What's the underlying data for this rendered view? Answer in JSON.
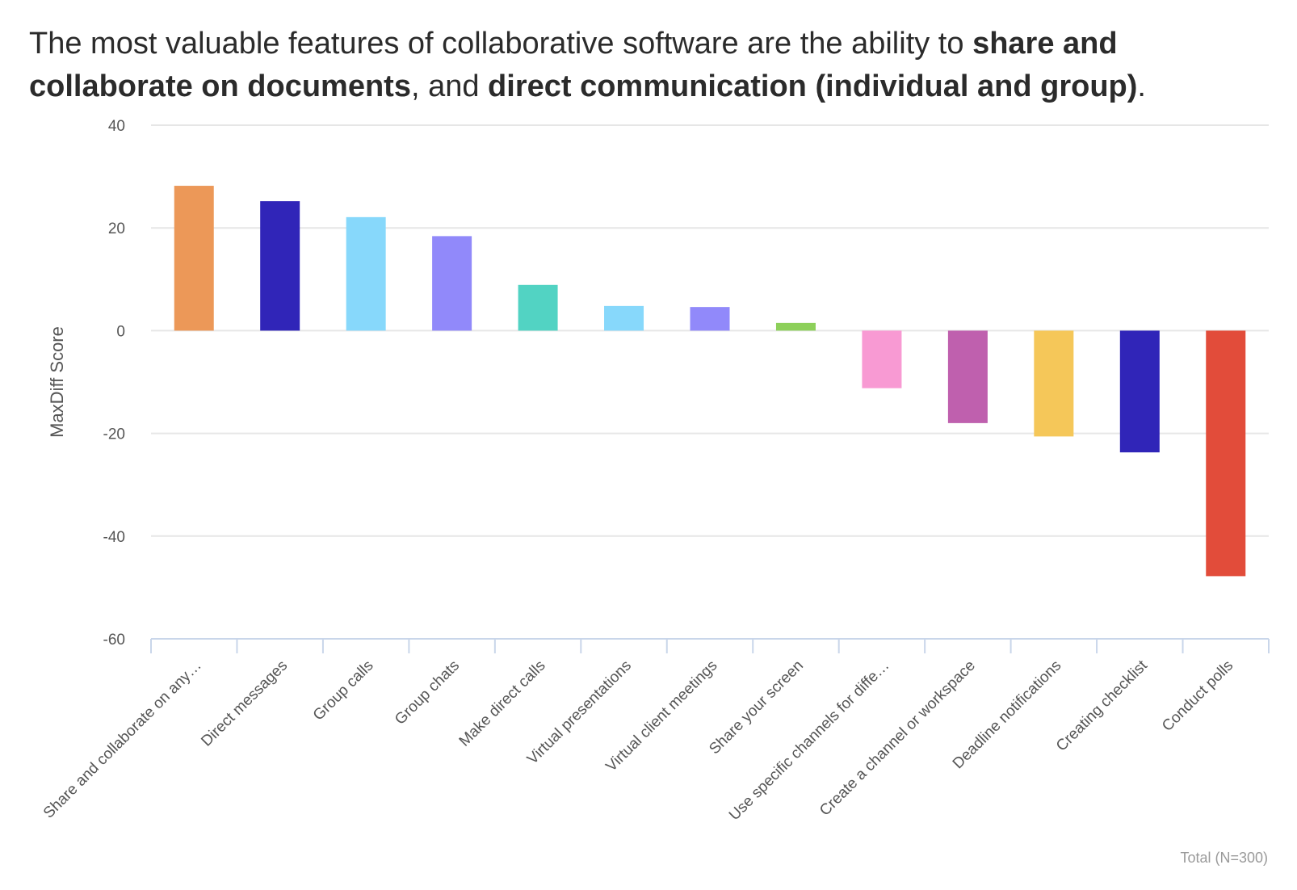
{
  "title_parts": {
    "t1": "The most valuable features of collaborative software are the ability to ",
    "b1": "share and collaborate on documents",
    "t2": ", and ",
    "b2": "direct communication (individual and group)",
    "t3": "."
  },
  "chart_data": {
    "type": "bar",
    "title": "The most valuable features of collaborative software are the ability to share and collaborate on documents, and direct communication (individual and group).",
    "xlabel": "",
    "ylabel": "MaxDiff Score",
    "ylim": [
      -60,
      40
    ],
    "yticks": [
      40,
      20,
      0,
      -20,
      -40,
      -60
    ],
    "grid": true,
    "categories": [
      "Share and collaborate on any…",
      "Direct messages",
      "Group calls",
      "Group chats",
      "Make direct calls",
      "Virtual presentations",
      "Virtual client meetings",
      "Share your screen",
      "Use specific channels for diffe…",
      "Create a channel or workspace",
      "Deadline notifications",
      "Creating checklist",
      "Conduct polls"
    ],
    "values": [
      28.2,
      25.2,
      22.1,
      18.4,
      8.9,
      4.8,
      4.6,
      1.5,
      -11.2,
      -18.0,
      -20.6,
      -23.7,
      -47.8
    ],
    "colors": [
      "#ec9858",
      "#3025b8",
      "#87d8fb",
      "#9189fa",
      "#52d3c3",
      "#87d8fb",
      "#9189fa",
      "#8dd05a",
      "#f89ad3",
      "#bf60ae",
      "#f5c759",
      "#3025b8",
      "#e24c3a"
    ],
    "note": "Total (N=300)"
  }
}
